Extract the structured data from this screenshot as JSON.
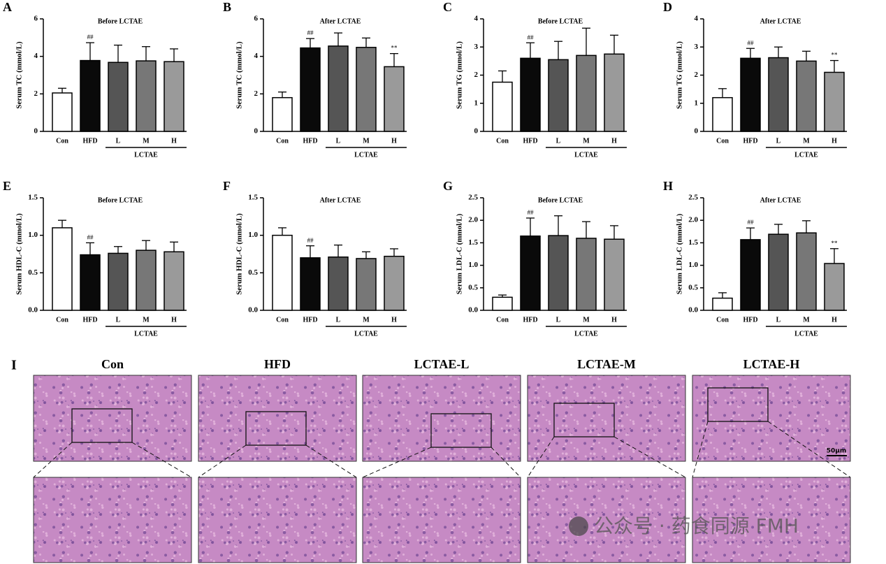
{
  "chart_data": [
    {
      "type": "bar",
      "panel": "A",
      "title": "Before LCTAE",
      "ylabel": "Serum TC (mmol/L)",
      "categories": [
        "Con",
        "HFD",
        "L",
        "M",
        "H"
      ],
      "group_label": "LCTAE",
      "values": [
        2.05,
        3.78,
        3.68,
        3.76,
        3.72
      ],
      "errors": [
        0.25,
        0.95,
        0.92,
        0.76,
        0.68
      ],
      "value_annotations": [
        null,
        "##",
        null,
        null,
        null
      ],
      "colors": [
        "#ffffff",
        "#0a0a0a",
        "#555555",
        "#777777",
        "#9a9a9a"
      ],
      "ylim": [
        0,
        6
      ],
      "yticks": [
        0,
        2,
        4,
        6
      ]
    },
    {
      "type": "bar",
      "panel": "B",
      "title": "After LCTAE",
      "ylabel": "Serum TC (mmol/L)",
      "categories": [
        "Con",
        "HFD",
        "L",
        "M",
        "H"
      ],
      "group_label": "LCTAE",
      "values": [
        1.8,
        4.45,
        4.55,
        4.48,
        3.45
      ],
      "errors": [
        0.3,
        0.5,
        0.7,
        0.5,
        0.7
      ],
      "value_annotations": [
        null,
        "##",
        null,
        null,
        "**"
      ],
      "colors": [
        "#ffffff",
        "#0a0a0a",
        "#555555",
        "#777777",
        "#9a9a9a"
      ],
      "ylim": [
        0,
        6
      ],
      "yticks": [
        0,
        2,
        4,
        6
      ]
    },
    {
      "type": "bar",
      "panel": "C",
      "title": "Before LCTAE",
      "ylabel": "Serum TG (mmol/L)",
      "categories": [
        "Con",
        "HFD",
        "L",
        "M",
        "H"
      ],
      "group_label": "LCTAE",
      "values": [
        1.75,
        2.6,
        2.55,
        2.7,
        2.75
      ],
      "errors": [
        0.4,
        0.55,
        0.65,
        0.97,
        0.67
      ],
      "value_annotations": [
        null,
        "##",
        null,
        null,
        null
      ],
      "colors": [
        "#ffffff",
        "#0a0a0a",
        "#555555",
        "#777777",
        "#9a9a9a"
      ],
      "ylim": [
        0,
        4
      ],
      "yticks": [
        0,
        1,
        2,
        3,
        4
      ]
    },
    {
      "type": "bar",
      "panel": "D",
      "title": "After LCTAE",
      "ylabel": "Serum TG (mmol/L)",
      "categories": [
        "Con",
        "HFD",
        "L",
        "M",
        "H"
      ],
      "group_label": "LCTAE",
      "values": [
        1.2,
        2.6,
        2.62,
        2.5,
        2.1
      ],
      "errors": [
        0.32,
        0.35,
        0.38,
        0.35,
        0.42
      ],
      "value_annotations": [
        null,
        "##",
        null,
        null,
        "**"
      ],
      "colors": [
        "#ffffff",
        "#0a0a0a",
        "#555555",
        "#777777",
        "#9a9a9a"
      ],
      "ylim": [
        0,
        4
      ],
      "yticks": [
        0,
        1,
        2,
        3,
        4
      ]
    },
    {
      "type": "bar",
      "panel": "E",
      "title": "Before LCTAE",
      "ylabel": "Serum HDL-C (mmol/L)",
      "categories": [
        "Con",
        "HFD",
        "L",
        "M",
        "H"
      ],
      "group_label": "LCTAE",
      "values": [
        1.1,
        0.74,
        0.76,
        0.8,
        0.78
      ],
      "errors": [
        0.1,
        0.16,
        0.09,
        0.13,
        0.13
      ],
      "value_annotations": [
        null,
        "##",
        null,
        null,
        null
      ],
      "colors": [
        "#ffffff",
        "#0a0a0a",
        "#555555",
        "#777777",
        "#9a9a9a"
      ],
      "ylim": [
        0,
        1.5
      ],
      "yticks": [
        {
          "value": 0,
          "label": "0.0"
        },
        {
          "value": 0.5,
          "label": "0.5"
        },
        {
          "value": 1,
          "label": "1.0"
        },
        {
          "value": 1.5,
          "label": "1.5"
        }
      ]
    },
    {
      "type": "bar",
      "panel": "F",
      "title": "After LCTAE",
      "ylabel": "Serum HDL-C (mmol/L)",
      "categories": [
        "Con",
        "HFD",
        "L",
        "M",
        "H"
      ],
      "group_label": "LCTAE",
      "values": [
        1.0,
        0.7,
        0.71,
        0.69,
        0.72
      ],
      "errors": [
        0.1,
        0.16,
        0.16,
        0.09,
        0.1
      ],
      "value_annotations": [
        null,
        "##",
        null,
        null,
        null
      ],
      "colors": [
        "#ffffff",
        "#0a0a0a",
        "#555555",
        "#777777",
        "#9a9a9a"
      ],
      "ylim": [
        0,
        1.5
      ],
      "yticks": [
        {
          "value": 0,
          "label": "0.0"
        },
        {
          "value": 0.5,
          "label": "0.5"
        },
        {
          "value": 1,
          "label": "1.0"
        },
        {
          "value": 1.5,
          "label": "1.5"
        }
      ]
    },
    {
      "type": "bar",
      "panel": "G",
      "title": "Before LCTAE",
      "ylabel": "Serum LDL-C (mmol/L)",
      "categories": [
        "Con",
        "HFD",
        "L",
        "M",
        "H"
      ],
      "group_label": "LCTAE",
      "values": [
        0.29,
        1.65,
        1.66,
        1.6,
        1.58
      ],
      "errors": [
        0.05,
        0.4,
        0.44,
        0.37,
        0.3
      ],
      "value_annotations": [
        null,
        "##",
        null,
        null,
        null
      ],
      "colors": [
        "#ffffff",
        "#0a0a0a",
        "#555555",
        "#777777",
        "#9a9a9a"
      ],
      "ylim": [
        0,
        2.5
      ],
      "yticks": [
        {
          "value": 0,
          "label": "0.0"
        },
        {
          "value": 0.5,
          "label": "0.5"
        },
        {
          "value": 1,
          "label": "1.0"
        },
        {
          "value": 1.5,
          "label": "1.5"
        },
        {
          "value": 2,
          "label": "2.0"
        },
        {
          "value": 2.5,
          "label": "2.5"
        }
      ]
    },
    {
      "type": "bar",
      "panel": "H",
      "title": "After LCTAE",
      "ylabel": "Serum LDL-C (mmol/L)",
      "categories": [
        "Con",
        "HFD",
        "L",
        "M",
        "H"
      ],
      "group_label": "LCTAE",
      "values": [
        0.27,
        1.57,
        1.69,
        1.72,
        1.04
      ],
      "errors": [
        0.12,
        0.26,
        0.22,
        0.27,
        0.33
      ],
      "value_annotations": [
        null,
        "##",
        null,
        null,
        "**"
      ],
      "colors": [
        "#ffffff",
        "#0a0a0a",
        "#555555",
        "#777777",
        "#9a9a9a"
      ],
      "ylim": [
        0,
        2.5
      ],
      "yticks": [
        {
          "value": 0,
          "label": "0.0"
        },
        {
          "value": 0.5,
          "label": "0.5"
        },
        {
          "value": 1,
          "label": "1.0"
        },
        {
          "value": 1.5,
          "label": "1.5"
        },
        {
          "value": 2,
          "label": "2.0"
        },
        {
          "value": 2.5,
          "label": "2.5"
        }
      ]
    }
  ],
  "histology": {
    "panel": "I",
    "columns": [
      "Con",
      "HFD",
      "LCTAE-L",
      "LCTAE-M",
      "LCTAE-H"
    ],
    "scale_bar": "50μm",
    "watermark": "公众号 · 药食同源 FMH"
  }
}
